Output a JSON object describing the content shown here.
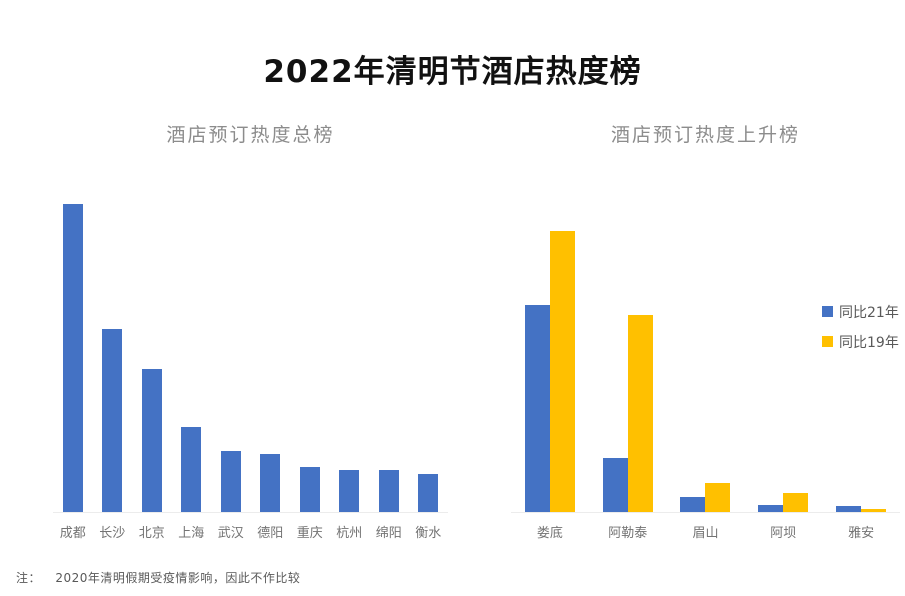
{
  "page": {
    "title": "2022年清明节酒店热度榜",
    "note_prefix": "注：",
    "note_body": "2020年清明假期受疫情影响，因此不作比较"
  },
  "colors": {
    "background": "#ffffff",
    "bar_blue": "#4472C4",
    "bar_yellow": "#FFC000",
    "title_text": "#111111",
    "subtitle_text": "#8c8c8c",
    "axis_label_text": "#737373",
    "note_text": "#595959"
  },
  "legend": {
    "items": [
      {
        "label": "同比21年",
        "color": "#4472C4"
      },
      {
        "label": "同比19年",
        "color": "#FFC000"
      }
    ]
  },
  "chart_data": [
    {
      "type": "bar",
      "title": "酒店预订热度总榜",
      "categories": [
        "成都",
        "长沙",
        "北京",
        "上海",
        "武汉",
        "德阳",
        "重庆",
        "杭州",
        "绵阳",
        "衡水"
      ],
      "values": [
        100,
        59.5,
        46.3,
        27.5,
        19.7,
        18.8,
        14.6,
        13.6,
        13.6,
        12.3
      ],
      "value_scale": "relative heat index, tallest bar = 100 (y-axis unlabeled in source)",
      "ylim": [
        0,
        100
      ],
      "grid": false,
      "y_axis_visible": false,
      "bar_color": "#4472C4"
    },
    {
      "type": "bar",
      "title": "酒店预订热度上升榜",
      "categories": [
        "娄底",
        "阿勒泰",
        "眉山",
        "阿坝",
        "雅安"
      ],
      "series": [
        {
          "name": "同比21年",
          "color": "#4472C4",
          "values": [
            73.8,
            19.1,
            5.3,
            2.5,
            2.1
          ]
        },
        {
          "name": "同比19年",
          "color": "#FFC000",
          "values": [
            100,
            70.2,
            10.3,
            6.9,
            1.2
          ]
        }
      ],
      "value_scale": "relative heat index, tallest bar = 100 (y-axis unlabeled in source)",
      "ylim": [
        0,
        100
      ],
      "grid": false,
      "y_axis_visible": false,
      "legend_position": "right"
    }
  ]
}
